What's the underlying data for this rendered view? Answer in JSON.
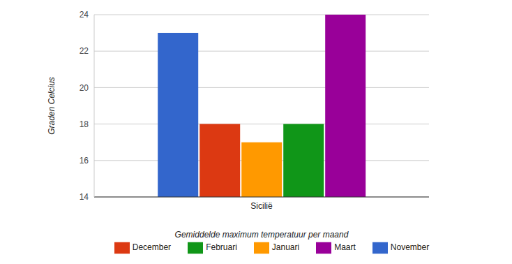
{
  "chart_data": {
    "type": "bar",
    "x_label": "Gemiddelde maximum temperatuur per maand",
    "y_label": "Graden Celcius",
    "categories": [
      "Sicilië"
    ],
    "series": [
      {
        "name": "November",
        "color": "#3366cc",
        "values": [
          23
        ]
      },
      {
        "name": "December",
        "color": "#dc3912",
        "values": [
          18
        ]
      },
      {
        "name": "Januari",
        "color": "#ff9900",
        "values": [
          17
        ]
      },
      {
        "name": "Februari",
        "color": "#109618",
        "values": [
          18
        ]
      },
      {
        "name": "Maart",
        "color": "#990099",
        "values": [
          24
        ]
      }
    ],
    "ylim": [
      14,
      24
    ],
    "yticks": [
      14,
      16,
      18,
      20,
      22,
      24
    ],
    "grid": true,
    "legend": "bottom"
  }
}
